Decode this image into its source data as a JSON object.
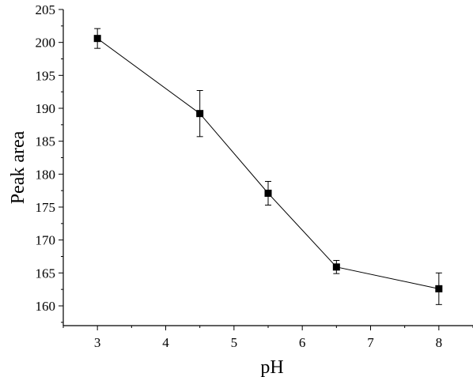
{
  "chart_data": {
    "type": "line",
    "xlabel": "pH",
    "ylabel": "Peak area",
    "xlim": [
      2.5,
      8.5
    ],
    "ylim": [
      157,
      205
    ],
    "x_ticks": [
      3,
      4,
      5,
      6,
      7,
      8
    ],
    "y_ticks": [
      160,
      165,
      170,
      175,
      180,
      185,
      190,
      195,
      200,
      205
    ],
    "series": [
      {
        "marker": "square",
        "color": "#000000",
        "points": [
          {
            "x": 3,
            "y": 200.6,
            "err": 1.5
          },
          {
            "x": 4.5,
            "y": 189.2,
            "err": 3.5
          },
          {
            "x": 5.5,
            "y": 177.1,
            "err": 1.8
          },
          {
            "x": 6.5,
            "y": 165.9,
            "err": 1.0
          },
          {
            "x": 8,
            "y": 162.6,
            "err": 2.4
          }
        ]
      }
    ],
    "grid": false,
    "legend": "none"
  }
}
